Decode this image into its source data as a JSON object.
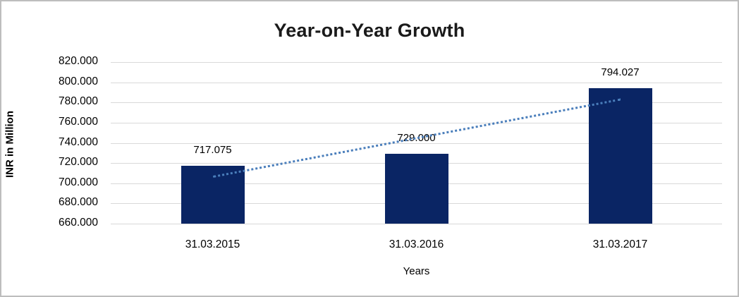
{
  "chart_data": {
    "type": "bar",
    "title": "Year-on-Year Growth",
    "xlabel": "Years",
    "ylabel": "INR in Million",
    "categories": [
      "31.03.2015",
      "31.03.2016",
      "31.03.2017"
    ],
    "values": [
      717.075,
      729.0,
      794.027
    ],
    "data_labels": [
      "717.075",
      "729.000",
      "794.027"
    ],
    "ylim": [
      660,
      820
    ],
    "ytick_step": 20,
    "ytick_labels": [
      "820.000",
      "800.000",
      "780.000",
      "760.000",
      "740.000",
      "720.000",
      "700.000",
      "680.000",
      "660.000"
    ],
    "grid": true,
    "legend_position": "none",
    "bar_color": "#0A2564",
    "gridline_color": "#d9d9d9",
    "trendline": {
      "style": "dotted",
      "color": "#4a7ebb",
      "start_category_index": 0,
      "start_value": 707.5,
      "end_category_index": 2,
      "end_value": 784.0
    }
  }
}
